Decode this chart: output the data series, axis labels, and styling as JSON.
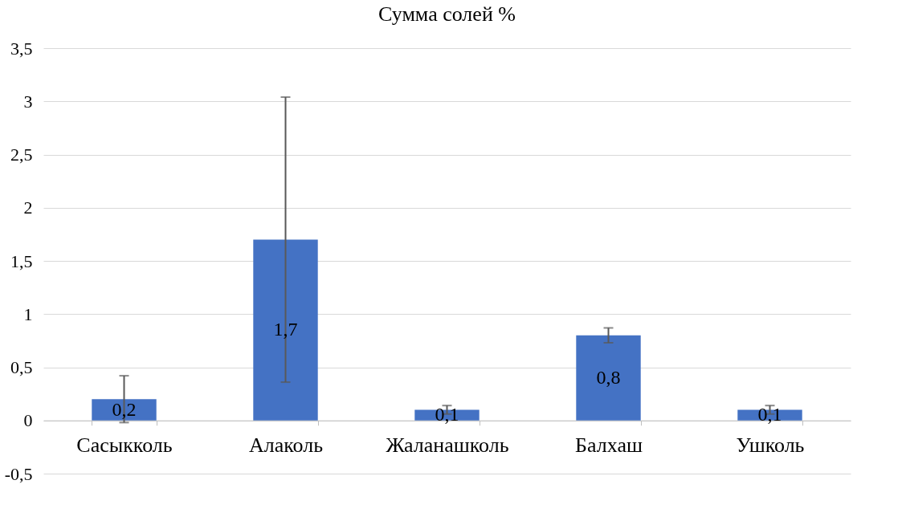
{
  "chart_data": {
    "type": "bar",
    "title": "Сумма солей %",
    "categories": [
      "Сасыкколь",
      "Алаколь",
      "Жаланашколь",
      "Балхаш",
      "Ушколь"
    ],
    "values": [
      0.2,
      1.7,
      0.1,
      0.8,
      0.1
    ],
    "errors": [
      0.22,
      1.34,
      0.04,
      0.07,
      0.04
    ],
    "value_labels": [
      "0,2",
      "1,7",
      "0,1",
      "0,8",
      "0,1"
    ],
    "color": "#4472c4",
    "ylim": [
      -0.5,
      3.5
    ],
    "yticks": [
      {
        "value": -0.5,
        "label": "-0,5"
      },
      0,
      {
        "value": 0.5,
        "label": "0,5"
      },
      1,
      {
        "value": 1.5,
        "label": "1,5"
      },
      2,
      {
        "value": 2.5,
        "label": "2,5"
      },
      3,
      {
        "value": 3.5,
        "label": "3,5"
      }
    ],
    "grid": true
  }
}
